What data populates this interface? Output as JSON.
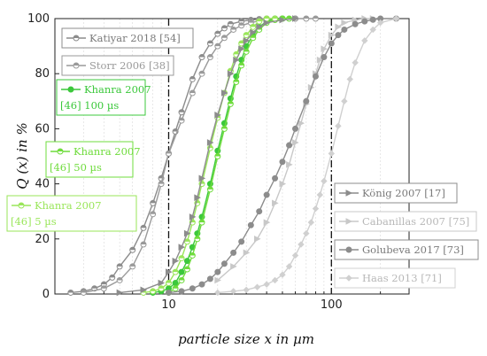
{
  "chart_data": {
    "type": "line",
    "xlabel": "particle size x in µm",
    "ylabel": "Q (x) in %",
    "xscale": "log",
    "xlim": [
      2,
      300
    ],
    "ylim": [
      0,
      100
    ],
    "x_ticks": [
      10,
      100
    ],
    "x_tick_labels": [
      "10",
      "100"
    ],
    "y_ticks": [
      0,
      20,
      40,
      60,
      80,
      100
    ],
    "y_tick_labels": [
      "0",
      "20",
      "40",
      "60",
      "80",
      "100"
    ],
    "reference_lines_x": [
      10,
      100
    ],
    "grid": "vertical log minor lines",
    "series": [
      {
        "name": "Katiyar 2018 [54]",
        "color": "#8c8c8c",
        "marker": "half-circle",
        "x": [
          2.5,
          3,
          3.5,
          4,
          4.5,
          5,
          6,
          7,
          8,
          9,
          10,
          11,
          12,
          14,
          16,
          18,
          20,
          22,
          24,
          28,
          32,
          36,
          40,
          45,
          50,
          60
        ],
        "y": [
          0.5,
          1,
          2,
          3.5,
          6,
          10,
          16,
          24,
          33,
          42,
          51,
          59,
          66,
          78,
          86,
          91,
          94.5,
          96.5,
          98,
          99,
          99.5,
          99.8,
          100,
          100,
          100,
          100
        ]
      },
      {
        "name": "Storr 2006 [38]",
        "color": "#9a9a9a",
        "marker": "half-circle",
        "x": [
          3,
          4,
          5,
          6,
          7,
          8,
          9,
          10,
          12,
          14,
          16,
          18,
          20,
          22,
          25,
          28,
          32,
          36,
          40,
          45,
          50,
          60,
          70,
          80
        ],
        "y": [
          0.5,
          2,
          5,
          10,
          18,
          29,
          40,
          51,
          63,
          73,
          80,
          86,
          90,
          93,
          96,
          97.5,
          98.5,
          99.2,
          99.6,
          99.8,
          100,
          100,
          100,
          100
        ]
      },
      {
        "name": "Khanra 2007 [46] 100 µs",
        "color": "#3cc83c",
        "marker": "filled-circle",
        "x": [
          8,
          9,
          10,
          11,
          12,
          13,
          14,
          15,
          16,
          18,
          20,
          22,
          24,
          26,
          28,
          30,
          33,
          36,
          40,
          45,
          50
        ],
        "y": [
          0.5,
          1,
          2,
          4,
          8,
          12,
          17,
          22,
          28,
          40,
          52,
          62,
          71,
          79,
          85,
          90,
          94,
          97,
          99,
          100,
          100
        ]
      },
      {
        "name": "Khanra 2007 [46] 50 µs",
        "color": "#6fdc3c",
        "marker": "half-circle",
        "x": [
          10,
          11,
          12,
          13,
          14,
          15,
          16,
          18,
          20,
          22,
          24,
          26,
          28,
          30,
          33,
          36,
          40,
          45,
          50,
          55
        ],
        "y": [
          0.5,
          2,
          5,
          9,
          14,
          20,
          26,
          38,
          50,
          60,
          69,
          77,
          83,
          88,
          93,
          96,
          98.5,
          99.5,
          100,
          100
        ]
      },
      {
        "name": "Khanra 2007 [46] 5 µs",
        "color": "#9ae65a",
        "marker": "half-circle",
        "x": [
          7,
          8,
          9,
          10,
          11,
          12,
          13,
          14,
          15,
          16,
          18,
          20,
          22,
          24,
          26,
          28,
          30,
          33,
          36,
          40,
          45
        ],
        "y": [
          0.5,
          1,
          2,
          4,
          8,
          13,
          19,
          26,
          33,
          40,
          53,
          64,
          73,
          81,
          87,
          91,
          94,
          97,
          99,
          100,
          100
        ]
      },
      {
        "name": "König 2007 [17]",
        "color": "#8c8c8c",
        "marker": "triangle",
        "x": [
          5,
          7,
          9,
          10,
          11,
          12,
          13,
          14,
          15,
          16,
          18,
          20,
          22,
          24,
          26,
          28,
          30,
          33,
          36,
          40,
          50,
          60
        ],
        "y": [
          0.5,
          1.5,
          4,
          8,
          12,
          17,
          22,
          28,
          35,
          42,
          55,
          65,
          73,
          80,
          85,
          89,
          92,
          95,
          97,
          98.5,
          99.5,
          100
        ]
      },
      {
        "name": "Cabanillas 2007 [75]",
        "color": "#c8c8c8",
        "marker": "triangle",
        "x": [
          20,
          25,
          30,
          35,
          40,
          45,
          50,
          55,
          60,
          65,
          70,
          75,
          80,
          85,
          90,
          100,
          110,
          120,
          140,
          160,
          180
        ],
        "y": [
          5,
          10,
          15,
          20,
          26,
          33,
          40,
          47,
          55,
          62,
          69,
          75,
          80,
          85,
          89,
          94,
          97,
          98.5,
          99.5,
          100,
          100
        ]
      },
      {
        "name": "Golubeva 2017 [73]",
        "color": "#8c8c8c",
        "marker": "filled-circle",
        "x": [
          10,
          12,
          14,
          16,
          18,
          20,
          22,
          25,
          28,
          32,
          36,
          40,
          45,
          50,
          55,
          60,
          70,
          80,
          90,
          100,
          110,
          120,
          140,
          160,
          180,
          200,
          250
        ],
        "y": [
          0.5,
          1,
          2,
          3.5,
          5.5,
          8,
          11,
          15,
          19,
          25,
          30,
          36,
          42,
          48,
          54,
          60,
          70,
          79,
          86,
          91,
          94,
          96,
          98,
          99,
          99.6,
          100,
          100
        ]
      },
      {
        "name": "Haas 2013 [71]",
        "color": "#d0d0d0",
        "marker": "diamond",
        "x": [
          20,
          25,
          30,
          35,
          40,
          45,
          50,
          55,
          60,
          65,
          70,
          75,
          80,
          85,
          90,
          100,
          110,
          120,
          130,
          140,
          160,
          180,
          200,
          250
        ],
        "y": [
          0.5,
          1,
          1.5,
          2.5,
          3.5,
          5,
          7,
          10,
          14,
          18,
          22,
          26,
          31,
          36,
          41,
          51,
          61,
          70,
          78,
          84,
          92,
          96,
          98.5,
          100
        ]
      }
    ]
  }
}
